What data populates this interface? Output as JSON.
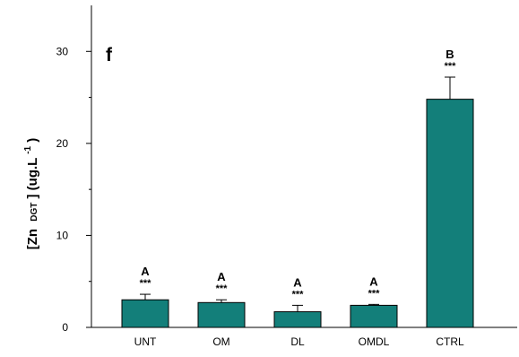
{
  "chart_data": {
    "type": "bar",
    "panel_letter": "f",
    "ylabel": {
      "prefix": "[Zn",
      "subscript": "DGT",
      "middle": "] (ug.L",
      "superscript": "-1",
      "suffix": ")"
    },
    "categories": [
      "UNT",
      "OM",
      "DL",
      "OMDL",
      "CTRL"
    ],
    "values": [
      3.0,
      2.7,
      1.7,
      2.4,
      24.8
    ],
    "errors": [
      0.6,
      0.3,
      0.7,
      0.1,
      2.4
    ],
    "group_letters": [
      "A",
      "A",
      "A",
      "A",
      "B"
    ],
    "significance": [
      "***",
      "***",
      "***",
      "***",
      "***"
    ],
    "yticks": [
      0,
      10,
      20,
      30
    ],
    "ylim": [
      0,
      35
    ],
    "bar_color": "#137f7a",
    "grid": false
  }
}
